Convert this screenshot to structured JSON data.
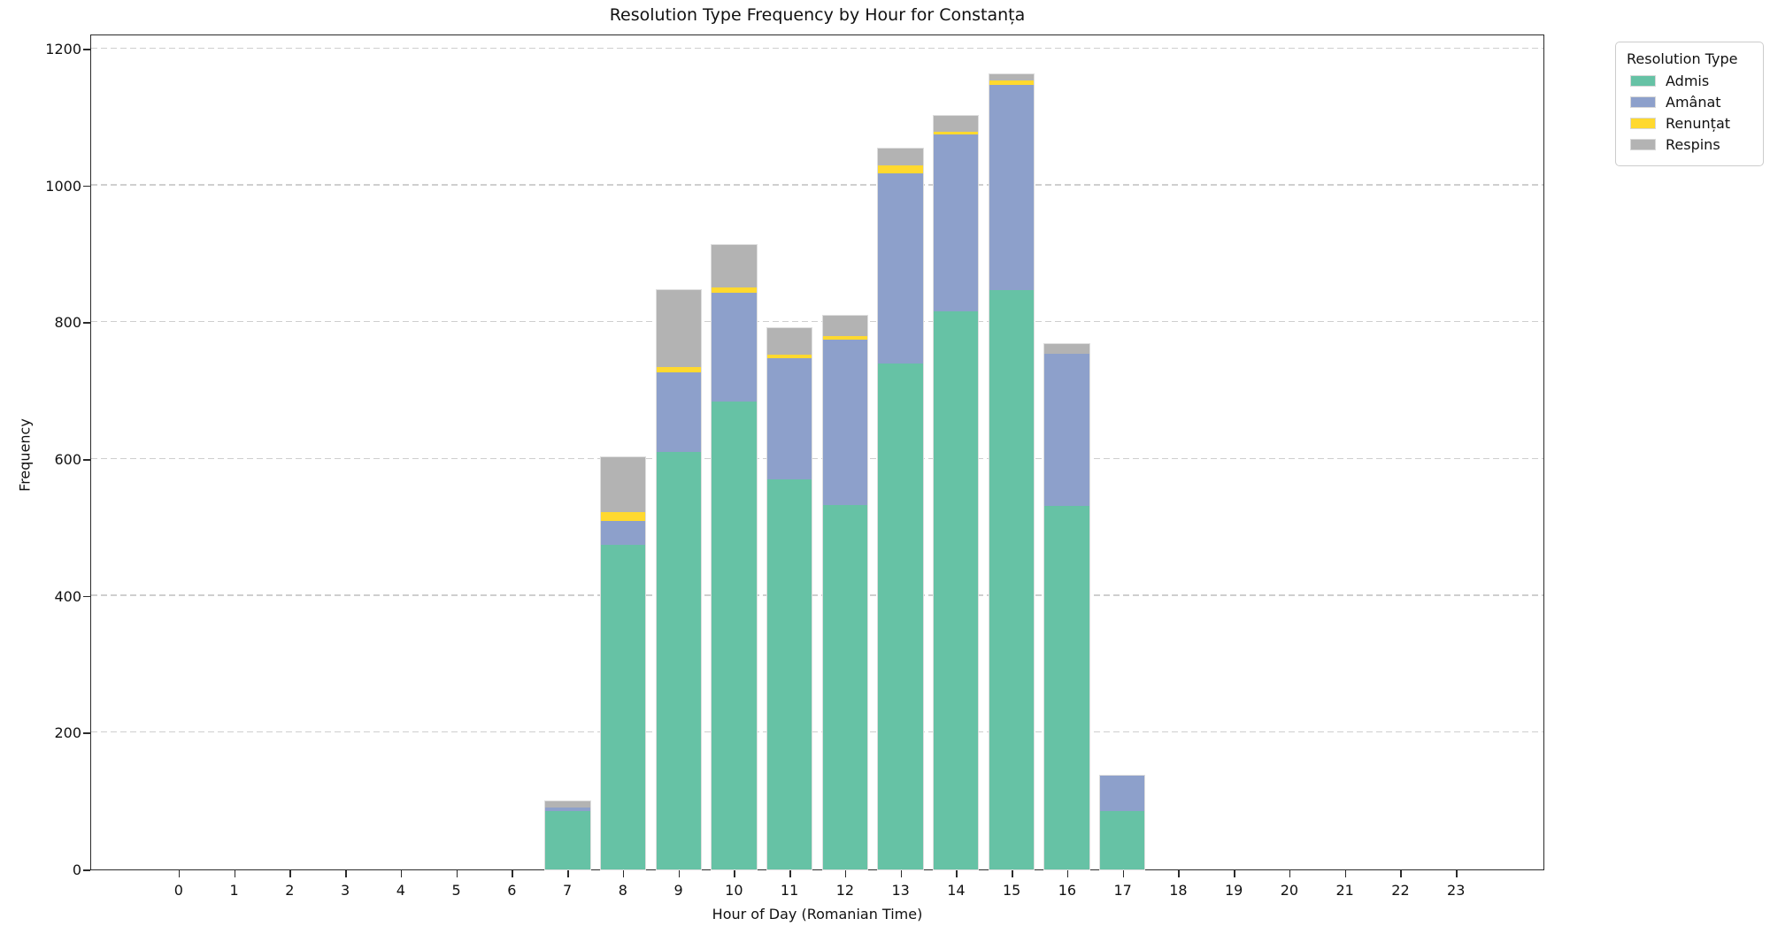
{
  "chart_data": {
    "type": "bar",
    "stacked": true,
    "title": "Resolution Type Frequency by Hour for Constanța",
    "xlabel": "Hour of Day (Romanian Time)",
    "ylabel": "Frequency",
    "legend_title": "Resolution Type",
    "legend_position": "outside upper right",
    "grid": "horizontal dashed",
    "categories": [
      0,
      1,
      2,
      3,
      4,
      5,
      6,
      7,
      8,
      9,
      10,
      11,
      12,
      13,
      14,
      15,
      16,
      17,
      18,
      19,
      20,
      21,
      22,
      23
    ],
    "series": [
      {
        "name": "Admis",
        "color": "#66c2a5",
        "values": [
          0,
          0,
          0,
          0,
          0,
          0,
          0,
          85,
          474,
          611,
          684,
          570,
          533,
          740,
          816,
          847,
          531,
          86,
          0,
          0,
          0,
          0,
          0,
          0
        ]
      },
      {
        "name": "Amânat",
        "color": "#8da0cb",
        "values": [
          0,
          0,
          0,
          0,
          0,
          0,
          0,
          6,
          36,
          116,
          159,
          177,
          242,
          278,
          258,
          300,
          223,
          51,
          0,
          0,
          0,
          0,
          0,
          0
        ]
      },
      {
        "name": "Renunțat",
        "color": "#ffd92f",
        "values": [
          0,
          0,
          0,
          0,
          0,
          0,
          0,
          0,
          12,
          7,
          8,
          5,
          5,
          12,
          4,
          6,
          0,
          0,
          0,
          0,
          0,
          0,
          0,
          0
        ]
      },
      {
        "name": "Respins",
        "color": "#b3b3b3",
        "values": [
          0,
          0,
          0,
          0,
          0,
          0,
          0,
          8,
          81,
          113,
          62,
          40,
          30,
          24,
          24,
          9,
          14,
          0,
          0,
          0,
          0,
          0,
          0,
          0
        ]
      }
    ],
    "yticks": [
      0,
      200,
      400,
      600,
      800,
      1000,
      1200
    ],
    "ylim": [
      0,
      1222
    ],
    "xlim": [
      -1.59,
      24.59
    ],
    "bar_width_units": 0.8
  }
}
